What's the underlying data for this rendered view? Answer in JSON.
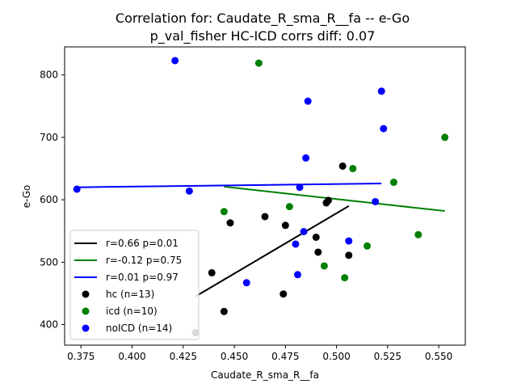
{
  "chart_data": {
    "type": "scatter",
    "title_line1": "Correlation for: Caudate_R_sma_R__fa -- e-Go",
    "title_line2": "p_val_fisher HC-ICD corrs diff: 0.07",
    "xlabel": "Caudate_R_sma_R__fa",
    "ylabel": "e-Go",
    "xlim": [
      0.367,
      0.563
    ],
    "ylim": [
      367,
      845
    ],
    "xticks": [
      0.375,
      0.4,
      0.425,
      0.45,
      0.475,
      0.5,
      0.525,
      0.55
    ],
    "xtick_labels": [
      "0.375",
      "0.400",
      "0.425",
      "0.450",
      "0.475",
      "0.500",
      "0.525",
      "0.550"
    ],
    "yticks": [
      400,
      500,
      600,
      700,
      800
    ],
    "ytick_labels": [
      "400",
      "500",
      "600",
      "700",
      "800"
    ],
    "fit_lines": [
      {
        "name": "hc",
        "label": "r=0.66 p=0.01",
        "color": "#000000",
        "x": [
          0.431,
          0.506
        ],
        "y": [
          445,
          590
        ]
      },
      {
        "name": "icd",
        "label": "r=-0.12 p=0.75",
        "color": "#008000",
        "x": [
          0.445,
          0.553
        ],
        "y": [
          621,
          582
        ]
      },
      {
        "name": "noICD",
        "label": "r=0.01 p=0.97",
        "color": "#0000ff",
        "x": [
          0.373,
          0.522
        ],
        "y": [
          620,
          626
        ]
      }
    ],
    "series": [
      {
        "name": "hc",
        "label": "hc (n=13)",
        "color": "#000000",
        "x": [
          0.431,
          0.439,
          0.445,
          0.448,
          0.465,
          0.474,
          0.475,
          0.49,
          0.491,
          0.495,
          0.496,
          0.503,
          0.506
        ],
        "y": [
          387,
          483,
          421,
          563,
          573,
          449,
          559,
          540,
          516,
          595,
          599,
          654,
          511
        ]
      },
      {
        "name": "icd",
        "label": "icd (n=10)",
        "color": "#008000",
        "x": [
          0.445,
          0.462,
          0.477,
          0.494,
          0.504,
          0.508,
          0.515,
          0.528,
          0.54,
          0.553
        ],
        "y": [
          581,
          819,
          589,
          494,
          475,
          650,
          526,
          628,
          544,
          700
        ]
      },
      {
        "name": "noICD",
        "label": "noICD (n=14)",
        "color": "#0000ff",
        "x": [
          0.373,
          0.421,
          0.428,
          0.456,
          0.48,
          0.481,
          0.482,
          0.484,
          0.485,
          0.486,
          0.506,
          0.519,
          0.522,
          0.523
        ],
        "y": [
          617,
          823,
          614,
          467,
          529,
          480,
          620,
          549,
          667,
          758,
          534,
          597,
          774,
          714
        ]
      }
    ],
    "legend_position": "lower-left"
  }
}
